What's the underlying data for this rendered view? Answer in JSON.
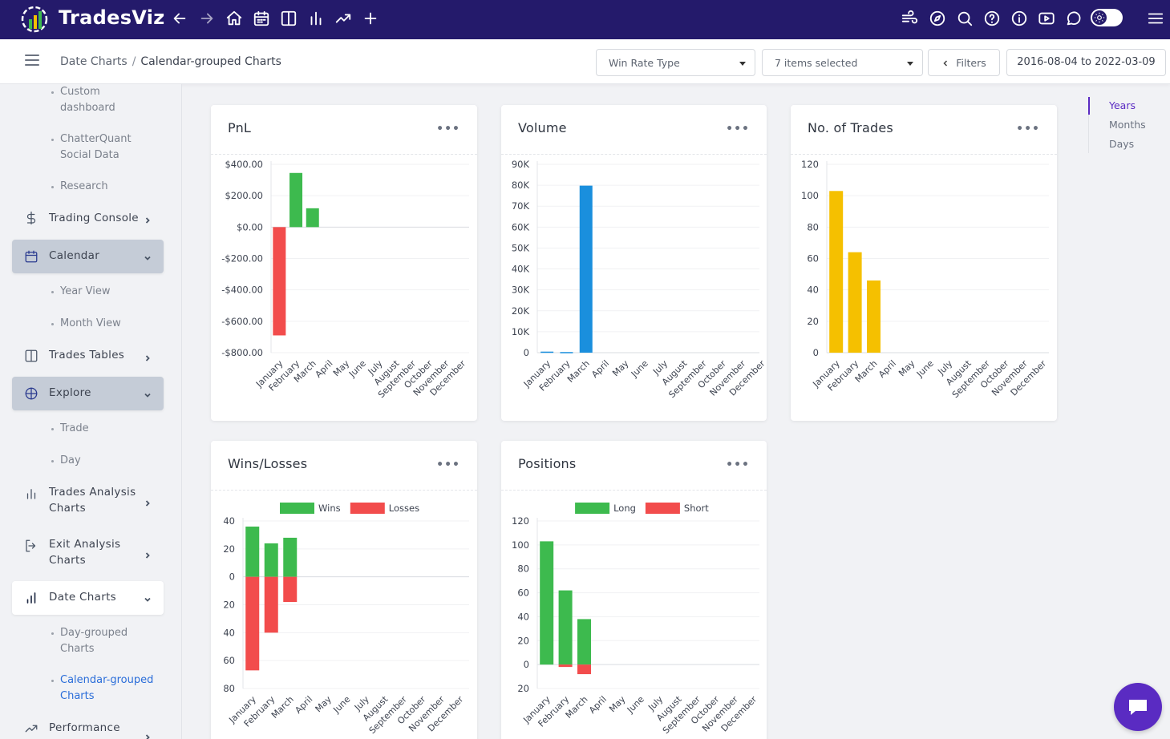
{
  "app": {
    "name": "TradesViz"
  },
  "breadcrumb": {
    "parent": "Date Charts",
    "separator": "/",
    "current": "Calendar-grouped Charts"
  },
  "filters": {
    "win_rate_type": "Win Rate Type",
    "items_selected": "7 items selected",
    "filters_label": "Filters",
    "date_range": "2016-08-04 to 2022-03-09"
  },
  "sidebar": {
    "custom_dashboard": "Custom dashboard",
    "chatterquant": "ChatterQuant Social Data",
    "research": "Research",
    "trading_console": "Trading Console",
    "calendar": "Calendar",
    "year_view": "Year View",
    "month_view": "Month View",
    "trades_tables": "Trades Tables",
    "explore": "Explore",
    "trade": "Trade",
    "day": "Day",
    "trades_analysis": "Trades Analysis Charts",
    "exit_analysis": "Exit Analysis Charts",
    "date_charts": "Date Charts",
    "day_grouped": "Day-grouped Charts",
    "calendar_grouped": "Calendar-grouped Charts",
    "performance": "Performance"
  },
  "anchor_nav": {
    "years": "Years",
    "months": "Months",
    "days": "Days"
  },
  "colors": {
    "green": "#3dba4e",
    "red": "#f24c4c",
    "blue": "#1a8fdd",
    "yellow": "#f5c000",
    "primary": "#241a6b",
    "accent": "#5a2bc2"
  },
  "chart_data": [
    {
      "id": "pnl",
      "type": "bar",
      "title": "PnL",
      "categories": [
        "January",
        "February",
        "March",
        "April",
        "May",
        "June",
        "July",
        "August",
        "September",
        "October",
        "November",
        "December"
      ],
      "ylim": [
        -800,
        400
      ],
      "yticks": [
        400,
        200,
        0,
        -200,
        -400,
        -600,
        -800
      ],
      "ytick_labels": [
        "$400.00",
        "$200.00",
        "$0.00",
        "-$200.00",
        "-$400.00",
        "-$600.00",
        "-$800.00"
      ],
      "bars": [
        {
          "name": "January",
          "values": [
            -690
          ],
          "colors": [
            "#f24c4c"
          ]
        },
        {
          "name": "February",
          "values": [
            345
          ],
          "colors": [
            "#3dba4e"
          ]
        },
        {
          "name": "March",
          "values": [
            120
          ],
          "colors": [
            "#3dba4e"
          ]
        }
      ]
    },
    {
      "id": "volume",
      "type": "bar",
      "title": "Volume",
      "categories": [
        "January",
        "February",
        "March",
        "April",
        "May",
        "June",
        "July",
        "August",
        "September",
        "October",
        "November",
        "December"
      ],
      "ylim": [
        0,
        90000
      ],
      "yticks": [
        90000,
        80000,
        70000,
        60000,
        50000,
        40000,
        30000,
        20000,
        10000,
        0
      ],
      "ytick_labels": [
        "90K",
        "80K",
        "70K",
        "60K",
        "50K",
        "40K",
        "30K",
        "20K",
        "10K",
        "0"
      ],
      "bars": [
        {
          "name": "January",
          "values": [
            500
          ],
          "colors": [
            "#1a8fdd"
          ]
        },
        {
          "name": "February",
          "values": [
            300
          ],
          "colors": [
            "#1a8fdd"
          ]
        },
        {
          "name": "March",
          "values": [
            79800
          ],
          "colors": [
            "#1a8fdd"
          ]
        }
      ]
    },
    {
      "id": "trades",
      "type": "bar",
      "title": "No. of Trades",
      "categories": [
        "January",
        "February",
        "March",
        "April",
        "May",
        "June",
        "July",
        "August",
        "September",
        "October",
        "November",
        "December"
      ],
      "ylim": [
        0,
        120
      ],
      "yticks": [
        120,
        100,
        80,
        60,
        40,
        20,
        0
      ],
      "ytick_labels": [
        "120",
        "100",
        "80",
        "60",
        "40",
        "20",
        "0"
      ],
      "bars": [
        {
          "name": "January",
          "values": [
            103
          ],
          "colors": [
            "#f5c000"
          ]
        },
        {
          "name": "February",
          "values": [
            64
          ],
          "colors": [
            "#f5c000"
          ]
        },
        {
          "name": "March",
          "values": [
            46
          ],
          "colors": [
            "#f5c000"
          ]
        }
      ]
    },
    {
      "id": "winloss",
      "type": "bar",
      "title": "Wins/Losses",
      "categories": [
        "January",
        "February",
        "March",
        "April",
        "May",
        "June",
        "July",
        "August",
        "September",
        "October",
        "November",
        "December"
      ],
      "ylim": [
        -80,
        40
      ],
      "yticks": [
        40,
        20,
        0,
        -20,
        -40,
        -60,
        -80
      ],
      "ytick_labels": [
        "40",
        "20",
        "0",
        "20",
        "40",
        "60",
        "80"
      ],
      "legend": [
        {
          "label": "Wins",
          "color": "#3dba4e"
        },
        {
          "label": "Losses",
          "color": "#f24c4c"
        }
      ],
      "bars": [
        {
          "name": "January",
          "values": [
            36,
            -67
          ],
          "colors": [
            "#3dba4e",
            "#f24c4c"
          ]
        },
        {
          "name": "February",
          "values": [
            24,
            -40
          ],
          "colors": [
            "#3dba4e",
            "#f24c4c"
          ]
        },
        {
          "name": "March",
          "values": [
            28,
            -18
          ],
          "colors": [
            "#3dba4e",
            "#f24c4c"
          ]
        }
      ]
    },
    {
      "id": "positions",
      "type": "bar",
      "title": "Positions",
      "categories": [
        "January",
        "February",
        "March",
        "April",
        "May",
        "June",
        "July",
        "August",
        "September",
        "October",
        "November",
        "December"
      ],
      "ylim": [
        -20,
        120
      ],
      "yticks": [
        120,
        100,
        80,
        60,
        40,
        20,
        0,
        -20
      ],
      "ytick_labels": [
        "120",
        "100",
        "80",
        "60",
        "40",
        "20",
        "0",
        "20"
      ],
      "legend": [
        {
          "label": "Long",
          "color": "#3dba4e"
        },
        {
          "label": "Short",
          "color": "#f24c4c"
        }
      ],
      "bars": [
        {
          "name": "January",
          "values": [
            103,
            0
          ],
          "colors": [
            "#3dba4e",
            "#f24c4c"
          ]
        },
        {
          "name": "February",
          "values": [
            62,
            -2
          ],
          "colors": [
            "#3dba4e",
            "#f24c4c"
          ]
        },
        {
          "name": "March",
          "values": [
            38,
            -8
          ],
          "colors": [
            "#3dba4e",
            "#f24c4c"
          ]
        }
      ]
    }
  ]
}
